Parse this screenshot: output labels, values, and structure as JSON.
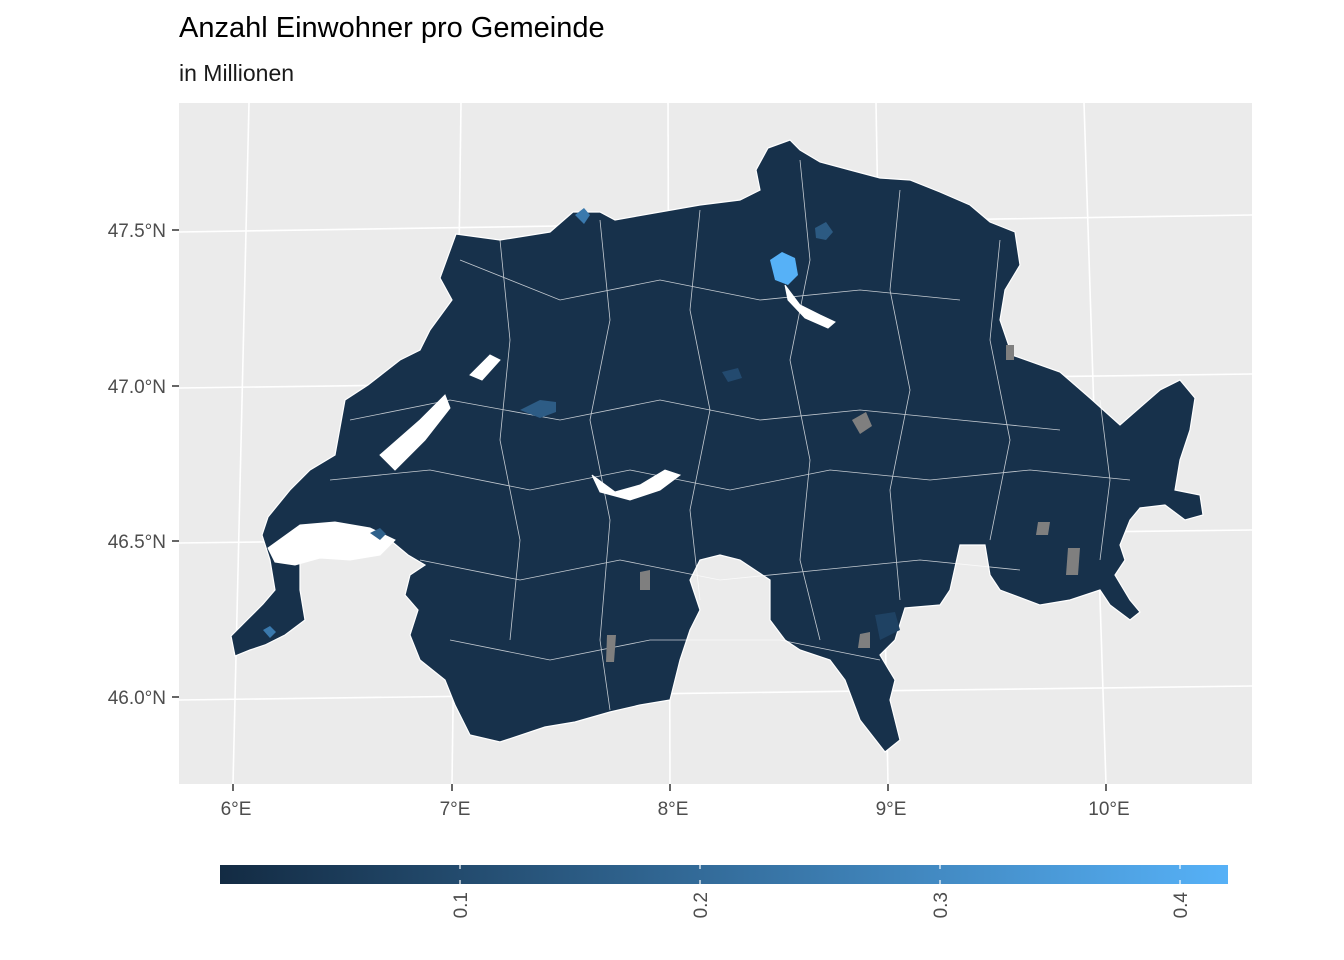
{
  "title": "Anzahl Einwohner pro Gemeinde",
  "subtitle": "in Millionen",
  "colors": {
    "panel_bg": "#ebebeb",
    "grid": "#ffffff",
    "fill_low": "#132b43",
    "fill_high": "#56b1f7",
    "na_fill": "#7f7f7f",
    "border": "#ffffff"
  },
  "axes": {
    "lat_labels": [
      "47.5°N",
      "47.0°N",
      "46.5°N",
      "46.0°N"
    ],
    "lon_labels": [
      "6°E",
      "7°E",
      "8°E",
      "9°E",
      "10°E"
    ]
  },
  "legend": {
    "position": "bottom",
    "min": 0.0,
    "max": 0.42,
    "breaks": [
      0.1,
      0.2,
      0.3,
      0.4
    ],
    "labels": [
      "0.1",
      "0.2",
      "0.3",
      "0.4"
    ]
  },
  "highlights": [
    {
      "name_hint": "zurich",
      "value": 0.42
    },
    {
      "name_hint": "geneva",
      "value": 0.2
    },
    {
      "name_hint": "basel",
      "value": 0.17
    },
    {
      "name_hint": "lausanne",
      "value": 0.14
    },
    {
      "name_hint": "bern",
      "value": 0.13
    },
    {
      "name_hint": "winterthur",
      "value": 0.11
    }
  ]
}
